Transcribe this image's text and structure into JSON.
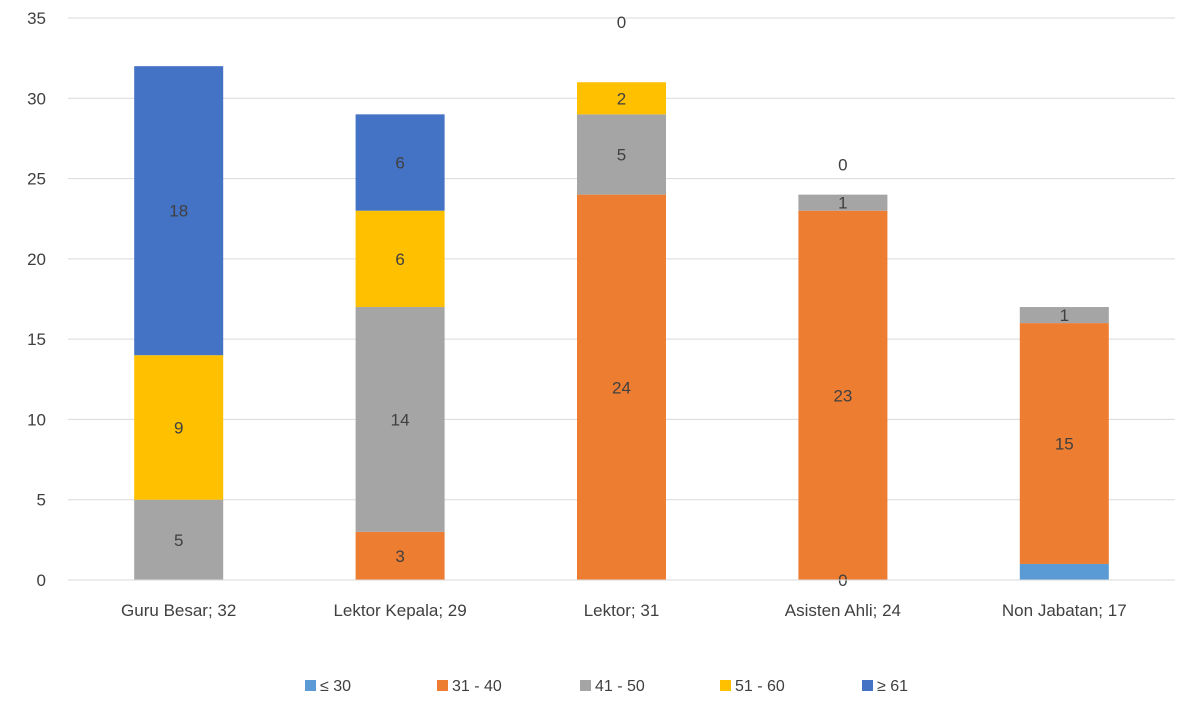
{
  "chart_data": {
    "type": "bar",
    "stacked": true,
    "categories": [
      "Guru Besar; 32",
      "Lektor Kepala; 29",
      "Lektor; 31",
      "Asisten Ahli; 24",
      "Non Jabatan; 17"
    ],
    "series": [
      {
        "name": "≤ 30",
        "color": "#5B9BD5",
        "values": [
          0,
          0,
          0,
          0,
          1
        ],
        "labels": [
          null,
          null,
          null,
          "0",
          null
        ]
      },
      {
        "name": "31 - 40",
        "color": "#ED7D31",
        "values": [
          0,
          3,
          24,
          23,
          15
        ],
        "labels": [
          null,
          "3",
          "24",
          "23",
          "15"
        ]
      },
      {
        "name": "41 - 50",
        "color": "#A5A5A5",
        "values": [
          5,
          14,
          5,
          1,
          1
        ],
        "labels": [
          "5",
          "14",
          "5",
          "1",
          "1"
        ]
      },
      {
        "name": "51 - 60",
        "color": "#FFC000",
        "values": [
          9,
          6,
          2,
          0,
          0
        ],
        "labels": [
          "9",
          "6",
          "2",
          "0",
          null
        ]
      },
      {
        "name": "≥ 61",
        "color": "#4472C4",
        "values": [
          18,
          6,
          0,
          0,
          0
        ],
        "labels": [
          "18",
          "6",
          "0",
          null,
          null
        ]
      }
    ],
    "y_ticks": [
      "0",
      "5",
      "10",
      "15",
      "20",
      "25",
      "30",
      "35"
    ],
    "ylim": [
      0,
      35
    ],
    "grid": true,
    "legend_position": "bottom"
  }
}
